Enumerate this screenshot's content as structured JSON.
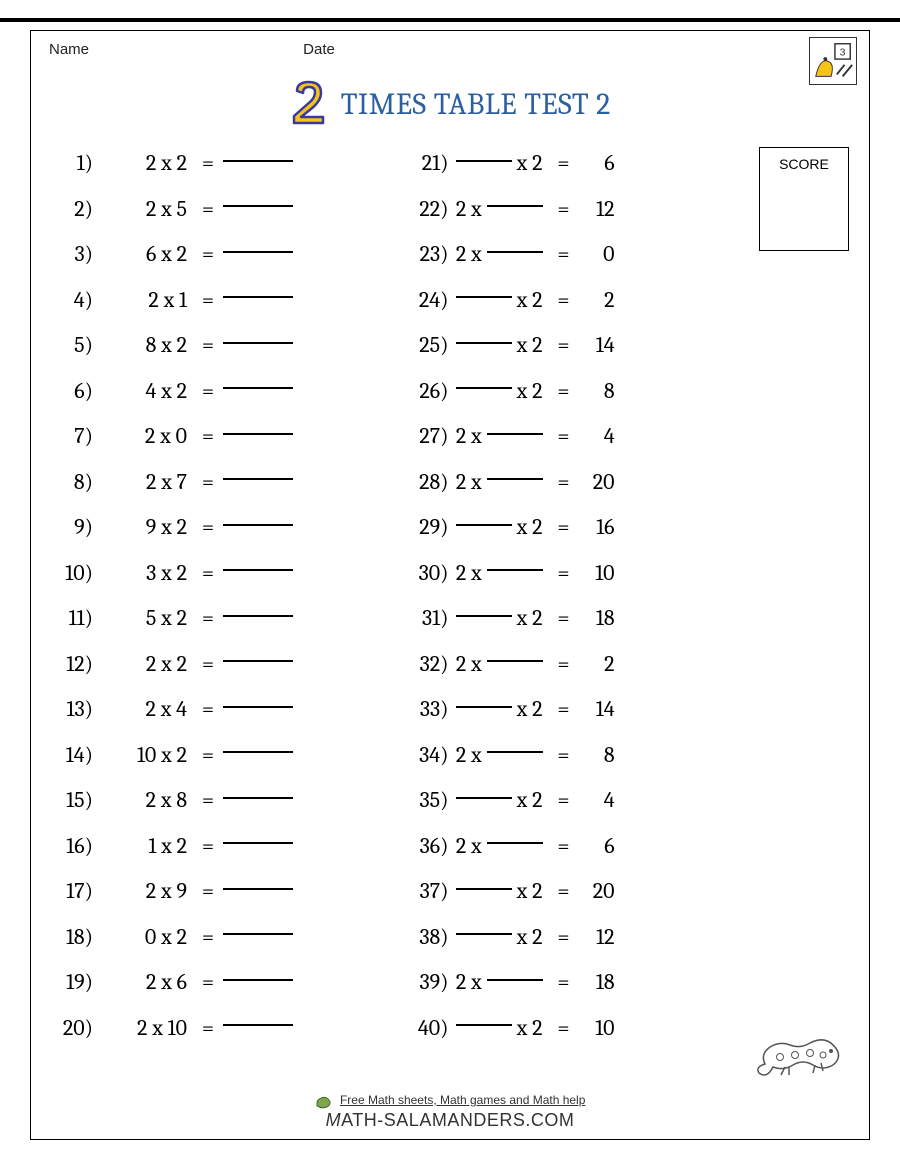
{
  "header": {
    "name_label": "Name",
    "date_label": "Date",
    "title": "TIMES TABLE TEST 2",
    "big_number": "2",
    "title_color": "#2a5fa0",
    "big_number_fill": "#f6c417",
    "big_number_stroke": "#3a3a9e"
  },
  "score": {
    "label": "SCORE"
  },
  "problems_left": [
    {
      "n": "1)",
      "a": "2",
      "b": "2"
    },
    {
      "n": "2)",
      "a": "2",
      "b": "5"
    },
    {
      "n": "3)",
      "a": "6",
      "b": "2"
    },
    {
      "n": "4)",
      "a": "2",
      "b": "1"
    },
    {
      "n": "5)",
      "a": "8",
      "b": "2"
    },
    {
      "n": "6)",
      "a": "4",
      "b": "2"
    },
    {
      "n": "7)",
      "a": "2",
      "b": "0"
    },
    {
      "n": "8)",
      "a": "2",
      "b": "7"
    },
    {
      "n": "9)",
      "a": "9",
      "b": "2"
    },
    {
      "n": "10)",
      "a": "3",
      "b": "2"
    },
    {
      "n": "11)",
      "a": "5",
      "b": "2"
    },
    {
      "n": "12)",
      "a": "2",
      "b": "2"
    },
    {
      "n": "13)",
      "a": "2",
      "b": "4"
    },
    {
      "n": "14)",
      "a": "10",
      "b": "2"
    },
    {
      "n": "15)",
      "a": "2",
      "b": "8"
    },
    {
      "n": "16)",
      "a": "1",
      "b": "2"
    },
    {
      "n": "17)",
      "a": "2",
      "b": "9"
    },
    {
      "n": "18)",
      "a": "0",
      "b": "2"
    },
    {
      "n": "19)",
      "a": "2",
      "b": "6"
    },
    {
      "n": "20)",
      "a": "2",
      "b": "10"
    }
  ],
  "problems_right": [
    {
      "n": "21)",
      "blank": "a",
      "known": "2",
      "ans": "6"
    },
    {
      "n": "22)",
      "blank": "b",
      "known": "2",
      "ans": "12"
    },
    {
      "n": "23)",
      "blank": "b",
      "known": "2",
      "ans": "0"
    },
    {
      "n": "24)",
      "blank": "a",
      "known": "2",
      "ans": "2"
    },
    {
      "n": "25)",
      "blank": "a",
      "known": "2",
      "ans": "14"
    },
    {
      "n": "26)",
      "blank": "a",
      "known": "2",
      "ans": "8"
    },
    {
      "n": "27)",
      "blank": "b",
      "known": "2",
      "ans": "4"
    },
    {
      "n": "28)",
      "blank": "b",
      "known": "2",
      "ans": "20"
    },
    {
      "n": "29)",
      "blank": "a",
      "known": "2",
      "ans": "16"
    },
    {
      "n": "30)",
      "blank": "b",
      "known": "2",
      "ans": "10"
    },
    {
      "n": "31)",
      "blank": "a",
      "known": "2",
      "ans": "18"
    },
    {
      "n": "32)",
      "blank": "b",
      "known": "2",
      "ans": "2"
    },
    {
      "n": "33)",
      "blank": "a",
      "known": "2",
      "ans": "14"
    },
    {
      "n": "34)",
      "blank": "b",
      "known": "2",
      "ans": "8"
    },
    {
      "n": "35)",
      "blank": "a",
      "known": "2",
      "ans": "4"
    },
    {
      "n": "36)",
      "blank": "b",
      "known": "2",
      "ans": "6"
    },
    {
      "n": "37)",
      "blank": "a",
      "known": "2",
      "ans": "20"
    },
    {
      "n": "38)",
      "blank": "a",
      "known": "2",
      "ans": "12"
    },
    {
      "n": "39)",
      "blank": "b",
      "known": "2",
      "ans": "18"
    },
    {
      "n": "40)",
      "blank": "a",
      "known": "2",
      "ans": "10"
    }
  ],
  "symbols": {
    "times": "x",
    "eq": "=",
    "paren": ")"
  },
  "footer": {
    "tagline": "Free Math sheets, Math games and Math help",
    "site": "Math-Salamanders.com"
  },
  "colors": {
    "text": "#000000",
    "background": "#ffffff",
    "border": "#000000",
    "salamander": "#7ea64a"
  }
}
